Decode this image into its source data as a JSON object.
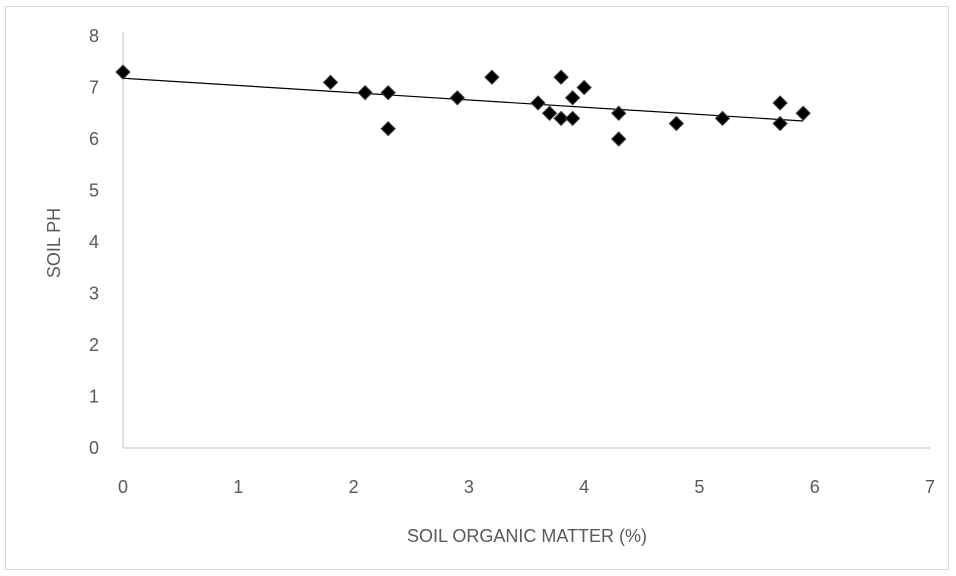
{
  "chart_data": {
    "type": "scatter",
    "title": "",
    "xlabel": "SOIL ORGANIC MATTER (%)",
    "ylabel": "SOIL PH",
    "xlim": [
      0,
      7
    ],
    "ylim": [
      0,
      8
    ],
    "xticks": [
      0,
      1,
      2,
      3,
      4,
      5,
      6,
      7
    ],
    "yticks": [
      0,
      1,
      2,
      3,
      4,
      5,
      6,
      7,
      8
    ],
    "grid": false,
    "legend": "none",
    "marker": "diamond",
    "marker_color": "#000000",
    "points": [
      {
        "x": 0.0,
        "y": 7.3
      },
      {
        "x": 1.8,
        "y": 7.1
      },
      {
        "x": 2.1,
        "y": 6.9
      },
      {
        "x": 2.3,
        "y": 6.9
      },
      {
        "x": 2.3,
        "y": 6.2
      },
      {
        "x": 2.9,
        "y": 6.8
      },
      {
        "x": 3.2,
        "y": 7.2
      },
      {
        "x": 3.6,
        "y": 6.7
      },
      {
        "x": 3.7,
        "y": 6.5
      },
      {
        "x": 3.8,
        "y": 7.2
      },
      {
        "x": 3.8,
        "y": 6.4
      },
      {
        "x": 3.9,
        "y": 6.8
      },
      {
        "x": 3.9,
        "y": 6.4
      },
      {
        "x": 4.0,
        "y": 7.0
      },
      {
        "x": 4.3,
        "y": 6.5
      },
      {
        "x": 4.3,
        "y": 6.0
      },
      {
        "x": 4.8,
        "y": 6.3
      },
      {
        "x": 5.2,
        "y": 6.4
      },
      {
        "x": 5.7,
        "y": 6.7
      },
      {
        "x": 5.7,
        "y": 6.3
      },
      {
        "x": 5.9,
        "y": 6.5
      }
    ],
    "trendline": {
      "type": "linear",
      "x": [
        0,
        5.9
      ],
      "y": [
        7.18,
        6.35
      ],
      "color": "#000000"
    }
  }
}
